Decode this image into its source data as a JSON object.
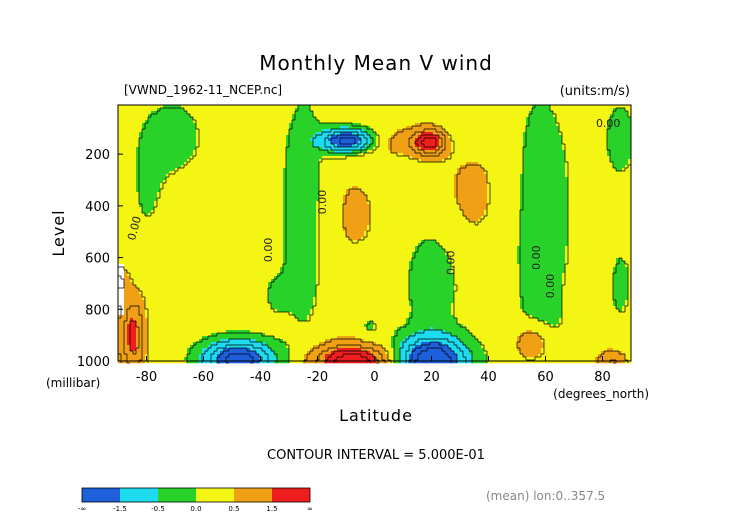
{
  "chart_data": {
    "type": "heatmap",
    "title": "Monthly Mean V wind",
    "subtitle_left": "[VWND_1962-11_NCEP.nc]",
    "units": "(units:m/s)",
    "xlabel": "Latitude",
    "x_unit_label": "(degrees_north)",
    "ylabel": "Level",
    "y_unit_label": "(millibar)",
    "contour_interval_text": "CONTOUR INTERVAL = 5.000E-01",
    "footer_text": "(mean) lon:0..357.5",
    "xlim": [
      -90,
      90
    ],
    "ylim": [
      1000,
      10
    ],
    "y_scale": "linear",
    "x_ticks": [
      -80,
      -60,
      -40,
      -20,
      0,
      20,
      40,
      60,
      80
    ],
    "x_tick_labels": [
      "-80",
      "-60",
      "-40",
      "-20",
      "0",
      "20",
      "40",
      "60",
      "80"
    ],
    "y_ticks": [
      200,
      400,
      600,
      800,
      1000
    ],
    "y_tick_labels": [
      "200",
      "400",
      "600",
      "800",
      "1000"
    ],
    "contour_interval": 0.5,
    "zero_contour_labels": [
      "0.00",
      "0.00",
      "0.00",
      "0.00",
      "0.00",
      "0.00",
      "0.00"
    ],
    "colorbar": {
      "levels": [
        "-∞",
        "-1.5",
        "-0.5",
        "0.0",
        "0.5",
        "1.5",
        "∞"
      ],
      "colors": [
        "#1e5fdc",
        "#1edcf0",
        "#28d228",
        "#f5f514",
        "#f0a014",
        "#f01e1e"
      ]
    },
    "bins": {
      "edges": [
        -1.5,
        -0.5,
        0.0,
        0.5,
        1.5
      ],
      "colors": [
        "#1e5fdc",
        "#1edcf0",
        "#28d228",
        "#f5f514",
        "#f0a014",
        "#f01e1e"
      ]
    },
    "field": {
      "background": 0.25,
      "features": [
        {
          "lat": -80,
          "lev": 320,
          "a": -0.3,
          "sx": 7,
          "sy": 260
        },
        {
          "lat": -70,
          "lev": 130,
          "a": -0.45,
          "sx": 10,
          "sy": 150
        },
        {
          "lat": -25,
          "lev": 420,
          "a": -0.6,
          "sx": 8,
          "sy": 460
        },
        {
          "lat": -35,
          "lev": 740,
          "a": -0.3,
          "sx": 5,
          "sy": 90
        },
        {
          "lat": -8,
          "lev": 430,
          "a": 0.3,
          "sx": 15,
          "sy": 260
        },
        {
          "lat": 6,
          "lev": 150,
          "a": 0.35,
          "sx": 10,
          "sy": 60
        },
        {
          "lat": -2,
          "lev": 870,
          "a": -0.3,
          "sx": 5,
          "sy": 80
        },
        {
          "lat": 35,
          "lev": 350,
          "a": 0.35,
          "sx": 14,
          "sy": 260
        },
        {
          "lat": 20,
          "lev": 680,
          "a": -0.55,
          "sx": 10,
          "sy": 210
        },
        {
          "lat": 58,
          "lev": 420,
          "a": -0.45,
          "sx": 13,
          "sy": 560
        },
        {
          "lat": 58,
          "lev": 880,
          "a": -0.15,
          "sx": 9,
          "sy": 110
        },
        {
          "lat": 30,
          "lev": 120,
          "a": -0.35,
          "sx": 8,
          "sy": 70
        },
        {
          "lat": 86,
          "lev": 140,
          "a": -0.45,
          "sx": 6,
          "sy": 160
        },
        {
          "lat": 86,
          "lev": 700,
          "a": -0.35,
          "sx": 5,
          "sy": 180
        },
        {
          "lat": 78,
          "lev": 480,
          "a": 0.2,
          "sx": 5,
          "sy": 200
        },
        {
          "lat": -10,
          "lev": 145,
          "a": -2.6,
          "sx": 9,
          "sy": 45
        },
        {
          "lat": 19,
          "lev": 150,
          "a": 2.0,
          "sx": 6,
          "sy": 50
        },
        {
          "lat": -48,
          "lev": 990,
          "a": -2.6,
          "sx": 12,
          "sy": 70
        },
        {
          "lat": -8,
          "lev": 1000,
          "a": 2.3,
          "sx": 13,
          "sy": 65
        },
        {
          "lat": 20,
          "lev": 1000,
          "a": -3.0,
          "sx": 12,
          "sy": 95
        },
        {
          "lat": 55,
          "lev": 930,
          "a": 0.9,
          "sx": 6,
          "sy": 70
        },
        {
          "lat": 83,
          "lev": 1000,
          "a": 0.8,
          "sx": 5,
          "sy": 45
        },
        {
          "lat": -85,
          "lev": 900,
          "a": 1.5,
          "sx": 4,
          "sy": 150
        },
        {
          "lat": -90,
          "lev": 690,
          "a": 0.8,
          "sx": 3,
          "sy": 60
        }
      ]
    }
  }
}
